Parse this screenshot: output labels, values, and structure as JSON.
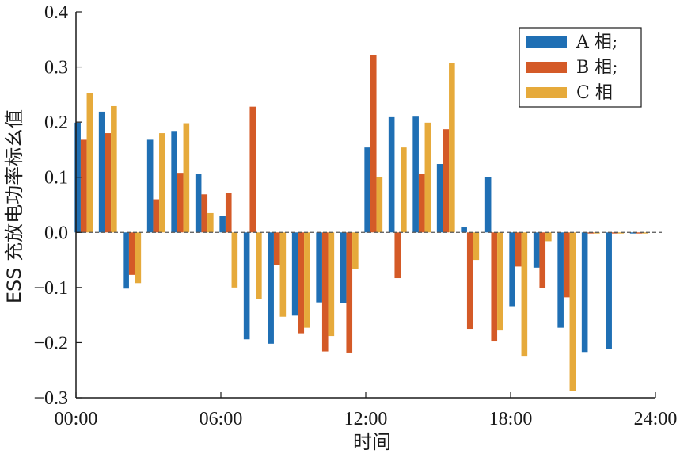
{
  "chart_data": {
    "type": "bar",
    "title": "",
    "xlabel": "时间",
    "ylabel": "ESS 充放电功率标幺值",
    "ylim": [
      -0.3,
      0.4
    ],
    "yticks": [
      "0.4",
      "0.3",
      "0.2",
      "0.1",
      "0.0",
      "−0.1",
      "−0.2",
      "−0.3"
    ],
    "yticks_values": [
      0.4,
      0.3,
      0.2,
      0.1,
      0.0,
      -0.1,
      -0.2,
      -0.3
    ],
    "xlim": [
      0,
      24
    ],
    "xticks": [
      "00:00",
      "06:00",
      "12:00",
      "18:00",
      "24:00"
    ],
    "xticks_values": [
      0,
      6,
      12,
      18,
      24
    ],
    "grid": false,
    "legend": {
      "position": "top-right"
    },
    "categories": [
      "00:00",
      "01:00",
      "02:00",
      "03:00",
      "04:00",
      "05:00",
      "06:00",
      "07:00",
      "08:00",
      "09:00",
      "10:00",
      "11:00",
      "12:00",
      "13:00",
      "14:00",
      "15:00",
      "16:00",
      "17:00",
      "18:00",
      "19:00",
      "20:00",
      "21:00",
      "22:00",
      "23:00"
    ],
    "series": [
      {
        "name": "A 相;",
        "color": "#1f6fb4",
        "values": [
          0.199,
          0.219,
          -0.102,
          0.168,
          0.184,
          0.106,
          0.03,
          -0.194,
          -0.202,
          -0.151,
          -0.127,
          -0.128,
          0.154,
          0.209,
          0.21,
          0.124,
          0.009,
          0.1,
          -0.134,
          -0.064,
          -0.173,
          -0.217,
          -0.212,
          -0.002
        ]
      },
      {
        "name": "B 相;",
        "color": "#d45a27",
        "values": [
          0.168,
          0.18,
          -0.077,
          0.06,
          0.108,
          0.069,
          0.071,
          0.228,
          -0.059,
          -0.183,
          -0.216,
          -0.218,
          0.321,
          -0.083,
          0.106,
          0.187,
          -0.175,
          -0.198,
          -0.062,
          -0.101,
          -0.118,
          -0.002,
          -0.002,
          -0.002
        ]
      },
      {
        "name": "C 相",
        "color": "#e6aa3b",
        "values": [
          0.252,
          0.229,
          -0.092,
          0.18,
          0.198,
          0.035,
          -0.1,
          -0.121,
          -0.153,
          -0.173,
          -0.188,
          -0.066,
          0.1,
          0.154,
          0.199,
          0.307,
          -0.05,
          -0.178,
          -0.224,
          -0.016,
          -0.288,
          -0.002,
          -0.002,
          -0.002
        ]
      }
    ]
  }
}
